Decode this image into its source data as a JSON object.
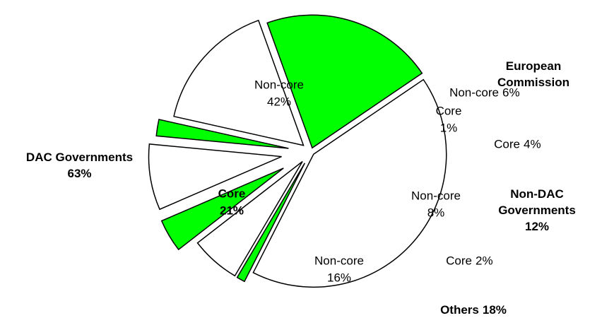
{
  "chart_data": {
    "type": "pie",
    "categories": [
      "Non-core",
      "Core",
      "Non-core",
      "Core",
      "Non-core",
      "Core",
      "Non-core",
      "Core"
    ],
    "values": [
      42,
      1,
      6,
      4,
      8,
      2,
      16,
      21
    ],
    "value_labels": [
      "42%",
      "1%",
      "6%",
      "4%",
      "8%",
      "2%",
      "16%",
      "21%"
    ],
    "colors": [
      "#ffffff",
      "#00ff00",
      "#ffffff",
      "#00ff00",
      "#ffffff",
      "#00ff00",
      "#ffffff",
      "#00ff00"
    ],
    "groups": [
      {
        "name": "European Commission"
      },
      {
        "name": "Non-DAC Governments",
        "total": "12%"
      },
      {
        "name": "Others",
        "total": "18%"
      },
      {
        "name": "DAC Governments",
        "total": "63%"
      }
    ]
  }
}
